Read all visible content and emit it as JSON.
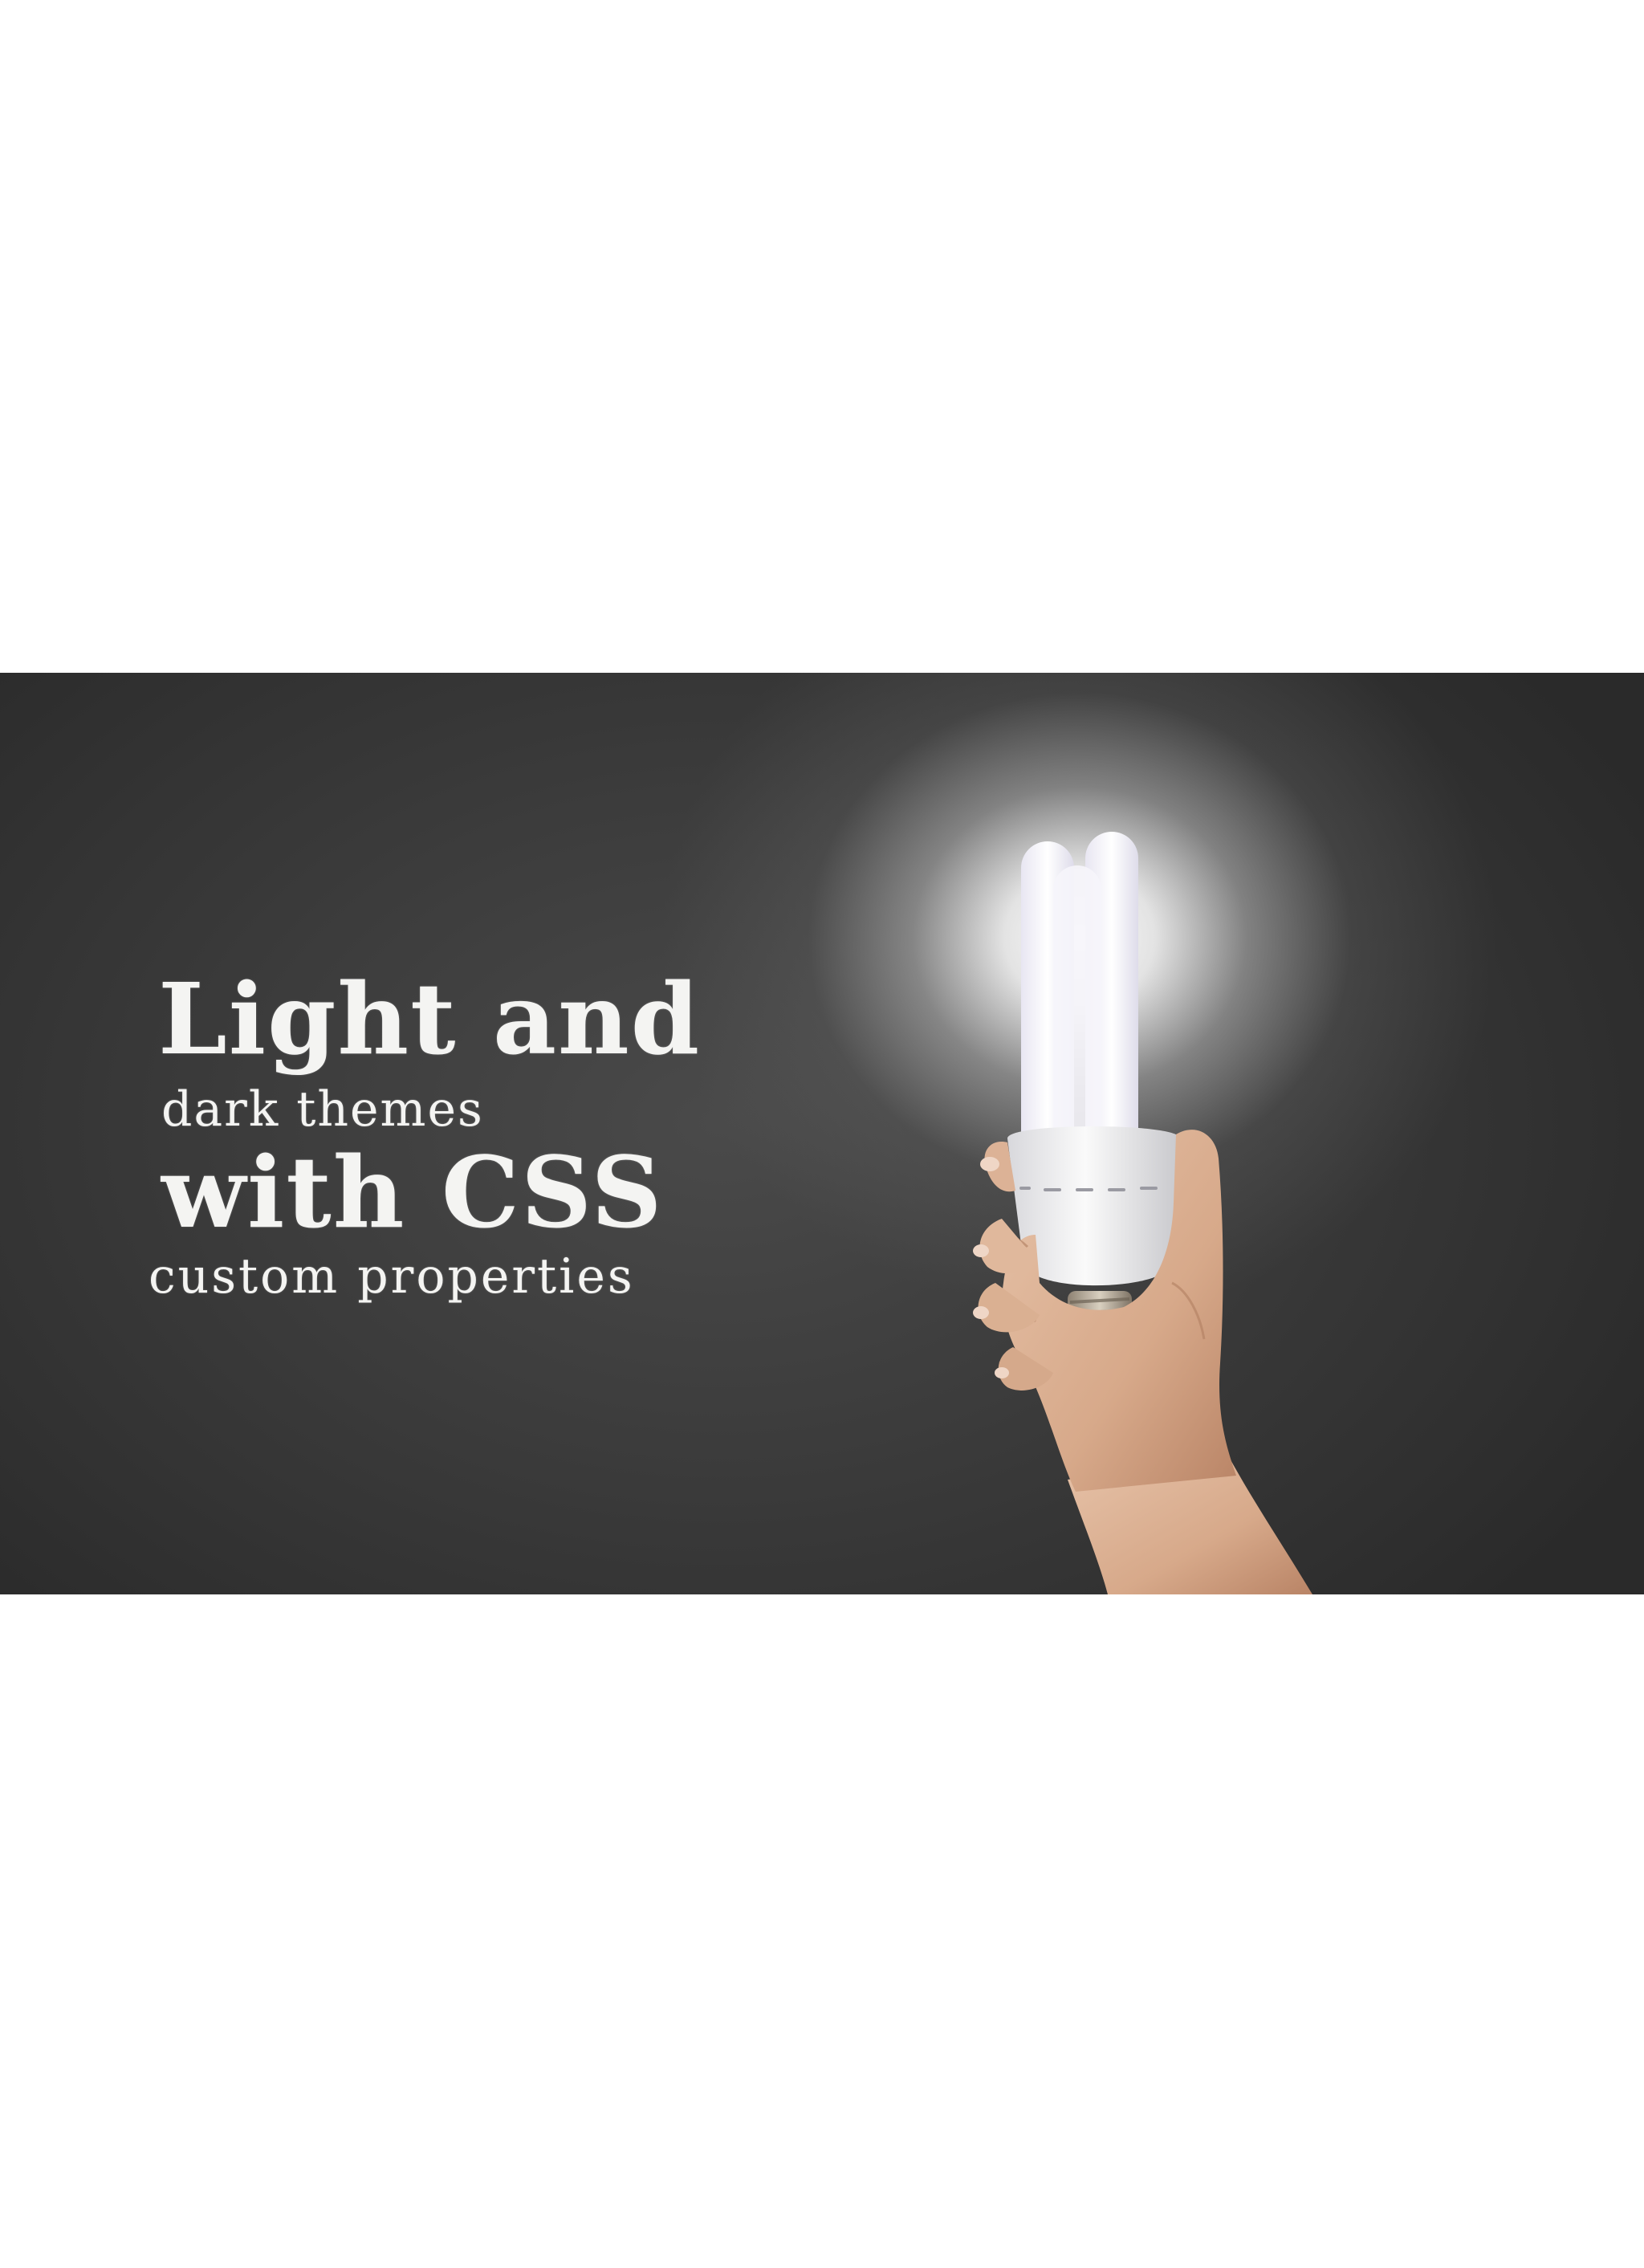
{
  "banner": {
    "headline": {
      "line1": "Light and",
      "line2": "dark themes",
      "line3": "with CSS",
      "line4": "custom properties"
    },
    "colors": {
      "background": "#3a3a3a",
      "text": "#f4f4f2",
      "glow": "#ffffff",
      "page": "#ffffff"
    },
    "image_subject": "hand holding glowing compact fluorescent light bulb"
  }
}
